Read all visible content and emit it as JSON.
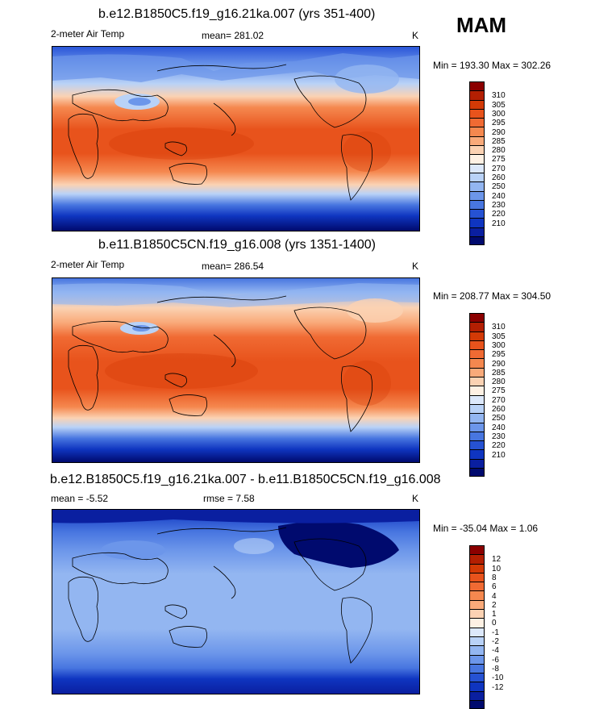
{
  "season": "MAM",
  "panels": [
    {
      "title": "b.e12.B1850C5.f19_g16.21ka.007 (yrs 351-400)",
      "variable": "2-meter Air Temp",
      "stat": "mean= 281.02",
      "units": "K",
      "minmax": "Min = 193.30 Max = 302.26",
      "colorbar": {
        "colors": [
          "#8b0000",
          "#b31f02",
          "#d33a06",
          "#e8531c",
          "#f06a33",
          "#f5884f",
          "#f9aa7a",
          "#fbd2b3",
          "#fef1e4",
          "#dce8fb",
          "#b9d2f7",
          "#93b6f1",
          "#6c96ea",
          "#4876e0",
          "#2652d3",
          "#0f35c0",
          "#0a1fa0",
          "#000a6e"
        ],
        "ticks": [
          "310",
          "305",
          "300",
          "295",
          "290",
          "285",
          "280",
          "275",
          "270",
          "260",
          "250",
          "240",
          "230",
          "220",
          "210"
        ]
      }
    },
    {
      "title": "b.e11.B1850C5CN.f19_g16.008 (yrs 1351-1400)",
      "variable": "2-meter Air Temp",
      "stat": "mean= 286.54",
      "units": "K",
      "minmax": "Min = 208.77 Max = 304.50",
      "colorbar": {
        "colors": [
          "#8b0000",
          "#b31f02",
          "#d33a06",
          "#e8531c",
          "#f06a33",
          "#f5884f",
          "#f9aa7a",
          "#fbd2b3",
          "#fef1e4",
          "#dce8fb",
          "#b9d2f7",
          "#93b6f1",
          "#6c96ea",
          "#4876e0",
          "#2652d3",
          "#0f35c0",
          "#0a1fa0",
          "#000a6e"
        ],
        "ticks": [
          "310",
          "305",
          "300",
          "295",
          "290",
          "285",
          "280",
          "275",
          "270",
          "260",
          "250",
          "240",
          "230",
          "220",
          "210"
        ]
      }
    },
    {
      "title": "b.e12.B1850C5.f19_g16.21ka.007 - b.e11.B1850C5CN.f19_g16.008",
      "stat": "mean =  -5.52",
      "stat2": "rmse =   7.58",
      "units": "K",
      "minmax": "Min = -35.04 Max =   1.06",
      "colorbar": {
        "colors": [
          "#8b0000",
          "#b31f02",
          "#d33a06",
          "#e8531c",
          "#f06a33",
          "#f5884f",
          "#f9aa7a",
          "#fbd2b3",
          "#fef1e4",
          "#dce8fb",
          "#b9d2f7",
          "#93b6f1",
          "#6c96ea",
          "#4876e0",
          "#2652d3",
          "#0f35c0",
          "#0a1fa0",
          "#000a6e"
        ],
        "ticks": [
          "12",
          "10",
          "8",
          "6",
          "4",
          "2",
          "1",
          "0",
          "-1",
          "-2",
          "-4",
          "-6",
          "-8",
          "-10",
          "-12"
        ]
      }
    }
  ]
}
